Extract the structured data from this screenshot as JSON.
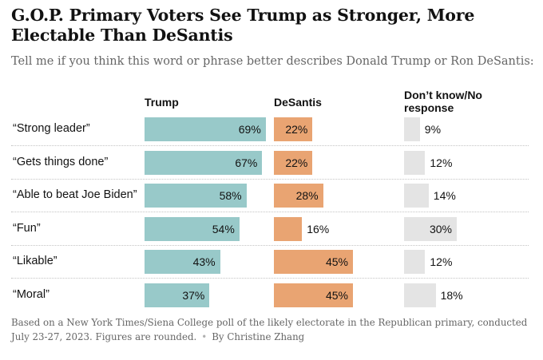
{
  "title": "G.O.P. Primary Voters See Trump as Stronger, More Electable Than DeSantis",
  "subtitle": "Tell me if you think this word or phrase better describes Donald Trump or Ron DeSantis:",
  "footnote": {
    "text": "Based on a New York Times/Siena College poll of the likely electorate in the Republican primary, conducted July 23-27, 2023. Figures are rounded.",
    "byline": "By Christine Zhang"
  },
  "colors": {
    "trump": "#98c9c9",
    "desantis": "#e9a472",
    "no_response": "#e4e4e4"
  },
  "chart_data": {
    "type": "bar",
    "categories": [
      "“Strong leader”",
      "“Gets things done”",
      "“Able to beat Joe Biden”",
      "“Fun”",
      "“Likable”",
      "“Moral”"
    ],
    "series": [
      {
        "name": "Trump",
        "values": [
          69,
          67,
          58,
          54,
          43,
          37
        ]
      },
      {
        "name": "DeSantis",
        "values": [
          22,
          22,
          28,
          16,
          45,
          45
        ]
      },
      {
        "name": "Don’t know/No response",
        "values": [
          9,
          12,
          14,
          30,
          12,
          18
        ]
      }
    ],
    "value_suffix": "%"
  }
}
